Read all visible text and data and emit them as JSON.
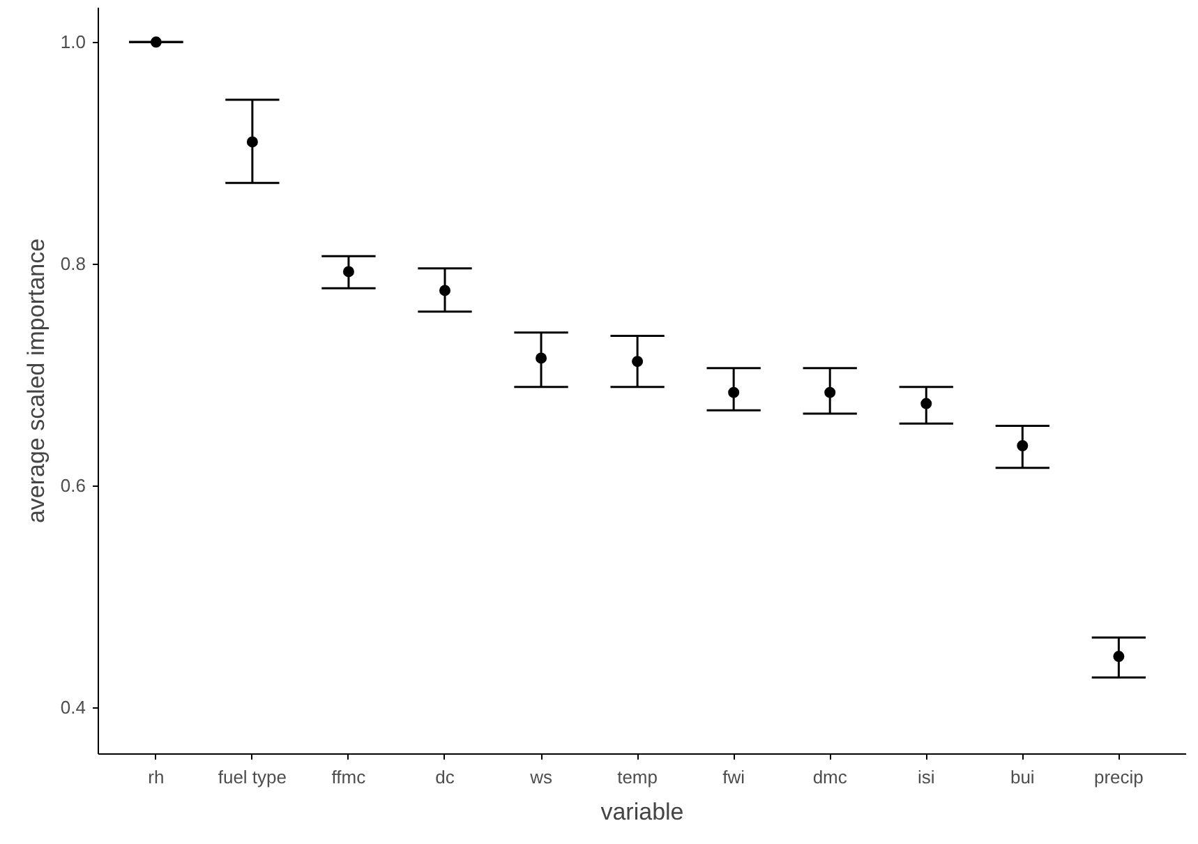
{
  "chart_data": {
    "type": "scatter",
    "xlabel": "variable",
    "ylabel": "average scaled importance",
    "categories": [
      "rh",
      "fuel type",
      "ffmc",
      "dc",
      "ws",
      "temp",
      "fwi",
      "dmc",
      "isi",
      "bui",
      "precip"
    ],
    "values": [
      1.0,
      0.91,
      0.793,
      0.776,
      0.715,
      0.712,
      0.684,
      0.684,
      0.674,
      0.636,
      0.446
    ],
    "errors": [
      [
        1.0,
        1.0
      ],
      [
        0.873,
        0.948
      ],
      [
        0.778,
        0.807
      ],
      [
        0.757,
        0.796
      ],
      [
        0.689,
        0.738
      ],
      [
        0.689,
        0.735
      ],
      [
        0.668,
        0.706
      ],
      [
        0.665,
        0.706
      ],
      [
        0.656,
        0.689
      ],
      [
        0.616,
        0.654
      ],
      [
        0.427,
        0.463
      ]
    ],
    "color": "#000000",
    "marker": "circle",
    "ylim": [
      0.358,
      1.031
    ],
    "yticks": [
      {
        "value": 0.4,
        "label": "0.4"
      },
      {
        "value": 0.6,
        "label": "0.6"
      },
      {
        "value": 0.8,
        "label": "0.8"
      },
      {
        "value": 1.0,
        "label": "1.0"
      }
    ],
    "grid": false
  }
}
